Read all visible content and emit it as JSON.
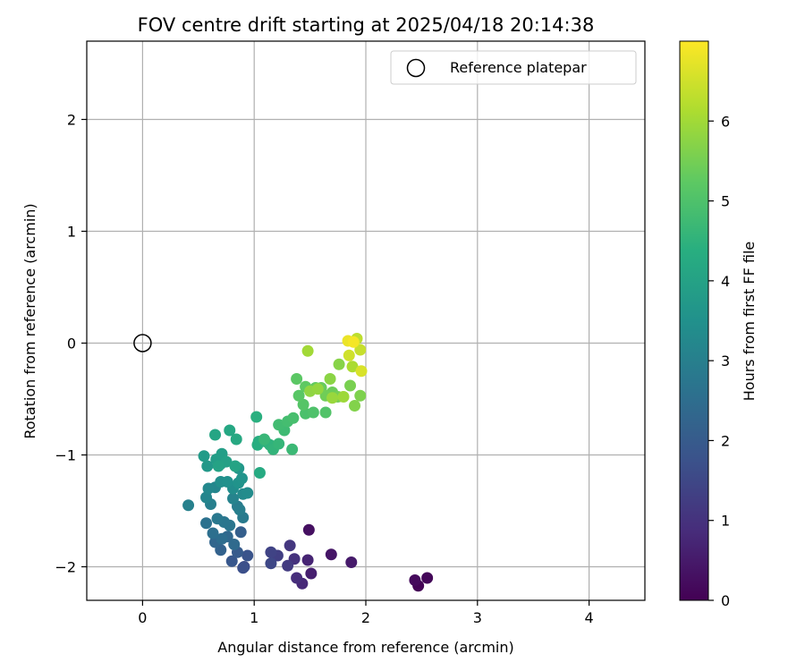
{
  "chart_data": {
    "type": "scatter",
    "title": "FOV centre drift starting at 2025/04/18 20:14:38",
    "xlabel": "Angular distance from reference (arcmin)",
    "ylabel": "Rotation from reference (arcmin)",
    "xlim": [
      -0.5,
      4.5
    ],
    "ylim": [
      -2.3,
      2.7
    ],
    "xticks": [
      0,
      1,
      2,
      3,
      4
    ],
    "xtick_labels": [
      "0",
      "1",
      "2",
      "3",
      "4"
    ],
    "yticks": [
      -2,
      -1,
      0,
      1,
      2
    ],
    "ytick_labels": [
      "−2",
      "−1",
      "0",
      "1",
      "2"
    ],
    "grid": true,
    "legend": {
      "placement": "top-right",
      "entries": [
        {
          "label": "Reference platepar",
          "marker": "open-circle"
        }
      ]
    },
    "reference_point": {
      "x": 0,
      "y": 0
    },
    "colorbar": {
      "label": "Hours from first FF file",
      "colormap": "viridis",
      "range": [
        0,
        7
      ],
      "ticks": [
        0,
        1,
        2,
        3,
        4,
        5,
        6
      ],
      "tick_labels": [
        "0",
        "1",
        "2",
        "3",
        "4",
        "5",
        "6"
      ]
    },
    "points": [
      {
        "x": 2.47,
        "y": -2.17,
        "t": 0.05
      },
      {
        "x": 2.55,
        "y": -2.1,
        "t": 0.12
      },
      {
        "x": 2.44,
        "y": -2.12,
        "t": 0.18
      },
      {
        "x": 1.49,
        "y": -1.67,
        "t": 0.3
      },
      {
        "x": 1.69,
        "y": -1.89,
        "t": 0.4
      },
      {
        "x": 1.87,
        "y": -1.96,
        "t": 0.5
      },
      {
        "x": 1.51,
        "y": -2.06,
        "t": 0.6
      },
      {
        "x": 1.48,
        "y": -1.94,
        "t": 0.7
      },
      {
        "x": 1.43,
        "y": -2.15,
        "t": 0.8
      },
      {
        "x": 1.38,
        "y": -2.1,
        "t": 0.9
      },
      {
        "x": 1.36,
        "y": -1.93,
        "t": 1.0
      },
      {
        "x": 1.32,
        "y": -1.81,
        "t": 1.1
      },
      {
        "x": 1.3,
        "y": -1.99,
        "t": 1.2
      },
      {
        "x": 1.21,
        "y": -1.9,
        "t": 1.3
      },
      {
        "x": 1.15,
        "y": -1.87,
        "t": 1.4
      },
      {
        "x": 1.15,
        "y": -1.97,
        "t": 1.5
      },
      {
        "x": 0.91,
        "y": -2.0,
        "t": 1.6
      },
      {
        "x": 0.9,
        "y": -2.01,
        "t": 1.7
      },
      {
        "x": 0.94,
        "y": -1.9,
        "t": 1.8
      },
      {
        "x": 0.8,
        "y": -1.95,
        "t": 1.9
      },
      {
        "x": 0.85,
        "y": -1.87,
        "t": 2.0
      },
      {
        "x": 0.88,
        "y": -1.69,
        "t": 2.1
      },
      {
        "x": 0.7,
        "y": -1.85,
        "t": 2.2
      },
      {
        "x": 0.65,
        "y": -1.78,
        "t": 2.3
      },
      {
        "x": 0.76,
        "y": -1.73,
        "t": 2.35
      },
      {
        "x": 0.82,
        "y": -1.8,
        "t": 2.4
      },
      {
        "x": 0.71,
        "y": -1.75,
        "t": 2.5
      },
      {
        "x": 0.63,
        "y": -1.7,
        "t": 2.55
      },
      {
        "x": 0.57,
        "y": -1.61,
        "t": 2.6
      },
      {
        "x": 0.78,
        "y": -1.63,
        "t": 2.7
      },
      {
        "x": 0.73,
        "y": -1.6,
        "t": 2.75
      },
      {
        "x": 0.67,
        "y": -1.57,
        "t": 2.8
      },
      {
        "x": 0.9,
        "y": -1.56,
        "t": 2.85
      },
      {
        "x": 0.85,
        "y": -1.46,
        "t": 2.9
      },
      {
        "x": 0.87,
        "y": -1.49,
        "t": 2.95
      },
      {
        "x": 0.61,
        "y": -1.44,
        "t": 3.0
      },
      {
        "x": 0.41,
        "y": -1.45,
        "t": 3.05
      },
      {
        "x": 0.81,
        "y": -1.39,
        "t": 3.1
      },
      {
        "x": 0.57,
        "y": -1.38,
        "t": 3.15
      },
      {
        "x": 0.65,
        "y": -1.29,
        "t": 3.2
      },
      {
        "x": 0.59,
        "y": -1.3,
        "t": 3.25
      },
      {
        "x": 0.9,
        "y": -1.35,
        "t": 3.3
      },
      {
        "x": 0.94,
        "y": -1.34,
        "t": 3.35
      },
      {
        "x": 0.81,
        "y": -1.3,
        "t": 3.4
      },
      {
        "x": 0.7,
        "y": -1.24,
        "t": 3.45
      },
      {
        "x": 0.76,
        "y": -1.24,
        "t": 3.5
      },
      {
        "x": 0.86,
        "y": -1.25,
        "t": 3.55
      },
      {
        "x": 0.89,
        "y": -1.21,
        "t": 3.6
      },
      {
        "x": 0.86,
        "y": -1.12,
        "t": 3.65
      },
      {
        "x": 0.58,
        "y": -1.1,
        "t": 3.7
      },
      {
        "x": 0.7,
        "y": -1.08,
        "t": 3.75
      },
      {
        "x": 0.55,
        "y": -1.01,
        "t": 3.8
      },
      {
        "x": 0.66,
        "y": -1.04,
        "t": 3.85
      },
      {
        "x": 0.71,
        "y": -0.99,
        "t": 3.9
      },
      {
        "x": 0.75,
        "y": -1.06,
        "t": 3.95
      },
      {
        "x": 0.68,
        "y": -1.1,
        "t": 4.0
      },
      {
        "x": 0.83,
        "y": -1.1,
        "t": 4.05
      },
      {
        "x": 0.65,
        "y": -0.82,
        "t": 4.1
      },
      {
        "x": 0.78,
        "y": -0.78,
        "t": 4.15
      },
      {
        "x": 0.84,
        "y": -0.86,
        "t": 4.2
      },
      {
        "x": 1.05,
        "y": -1.16,
        "t": 4.25
      },
      {
        "x": 1.04,
        "y": -0.88,
        "t": 4.3
      },
      {
        "x": 1.03,
        "y": -0.91,
        "t": 4.35
      },
      {
        "x": 1.02,
        "y": -0.66,
        "t": 4.4
      },
      {
        "x": 1.1,
        "y": -0.88,
        "t": 4.45
      },
      {
        "x": 1.14,
        "y": -0.91,
        "t": 4.5
      },
      {
        "x": 1.17,
        "y": -0.95,
        "t": 4.55
      },
      {
        "x": 1.22,
        "y": -0.9,
        "t": 4.6
      },
      {
        "x": 1.09,
        "y": -0.86,
        "t": 4.65
      },
      {
        "x": 1.34,
        "y": -0.95,
        "t": 4.7
      },
      {
        "x": 1.27,
        "y": -0.78,
        "t": 4.75
      },
      {
        "x": 1.22,
        "y": -0.73,
        "t": 4.8
      },
      {
        "x": 1.3,
        "y": -0.7,
        "t": 4.85
      },
      {
        "x": 1.35,
        "y": -0.67,
        "t": 4.9
      },
      {
        "x": 1.46,
        "y": -0.63,
        "t": 4.95
      },
      {
        "x": 1.53,
        "y": -0.62,
        "t": 5.0
      },
      {
        "x": 1.64,
        "y": -0.62,
        "t": 5.05
      },
      {
        "x": 1.44,
        "y": -0.55,
        "t": 5.1
      },
      {
        "x": 1.4,
        "y": -0.47,
        "t": 5.15
      },
      {
        "x": 1.38,
        "y": -0.32,
        "t": 5.2
      },
      {
        "x": 1.46,
        "y": -0.39,
        "t": 5.25
      },
      {
        "x": 1.55,
        "y": -0.4,
        "t": 5.3
      },
      {
        "x": 1.6,
        "y": -0.4,
        "t": 5.35
      },
      {
        "x": 1.7,
        "y": -0.44,
        "t": 5.4
      },
      {
        "x": 1.64,
        "y": -0.47,
        "t": 5.45
      },
      {
        "x": 1.75,
        "y": -0.48,
        "t": 5.5
      },
      {
        "x": 1.86,
        "y": -0.38,
        "t": 5.55
      },
      {
        "x": 1.95,
        "y": -0.47,
        "t": 5.6
      },
      {
        "x": 1.9,
        "y": -0.56,
        "t": 5.65
      },
      {
        "x": 1.76,
        "y": -0.19,
        "t": 5.7
      },
      {
        "x": 1.68,
        "y": -0.32,
        "t": 5.75
      },
      {
        "x": 1.5,
        "y": -0.43,
        "t": 5.8
      },
      {
        "x": 1.57,
        "y": -0.41,
        "t": 5.85
      },
      {
        "x": 1.7,
        "y": -0.49,
        "t": 5.9
      },
      {
        "x": 1.8,
        "y": -0.48,
        "t": 5.95
      },
      {
        "x": 1.48,
        "y": -0.07,
        "t": 6.0
      },
      {
        "x": 1.88,
        "y": -0.21,
        "t": 6.1
      },
      {
        "x": 1.92,
        "y": 0.04,
        "t": 6.3
      },
      {
        "x": 1.95,
        "y": -0.06,
        "t": 6.4
      },
      {
        "x": 1.85,
        "y": -0.11,
        "t": 6.5
      },
      {
        "x": 1.96,
        "y": -0.25,
        "t": 6.6
      },
      {
        "x": 1.84,
        "y": 0.02,
        "t": 6.8
      },
      {
        "x": 1.89,
        "y": 0.01,
        "t": 6.9
      }
    ]
  }
}
